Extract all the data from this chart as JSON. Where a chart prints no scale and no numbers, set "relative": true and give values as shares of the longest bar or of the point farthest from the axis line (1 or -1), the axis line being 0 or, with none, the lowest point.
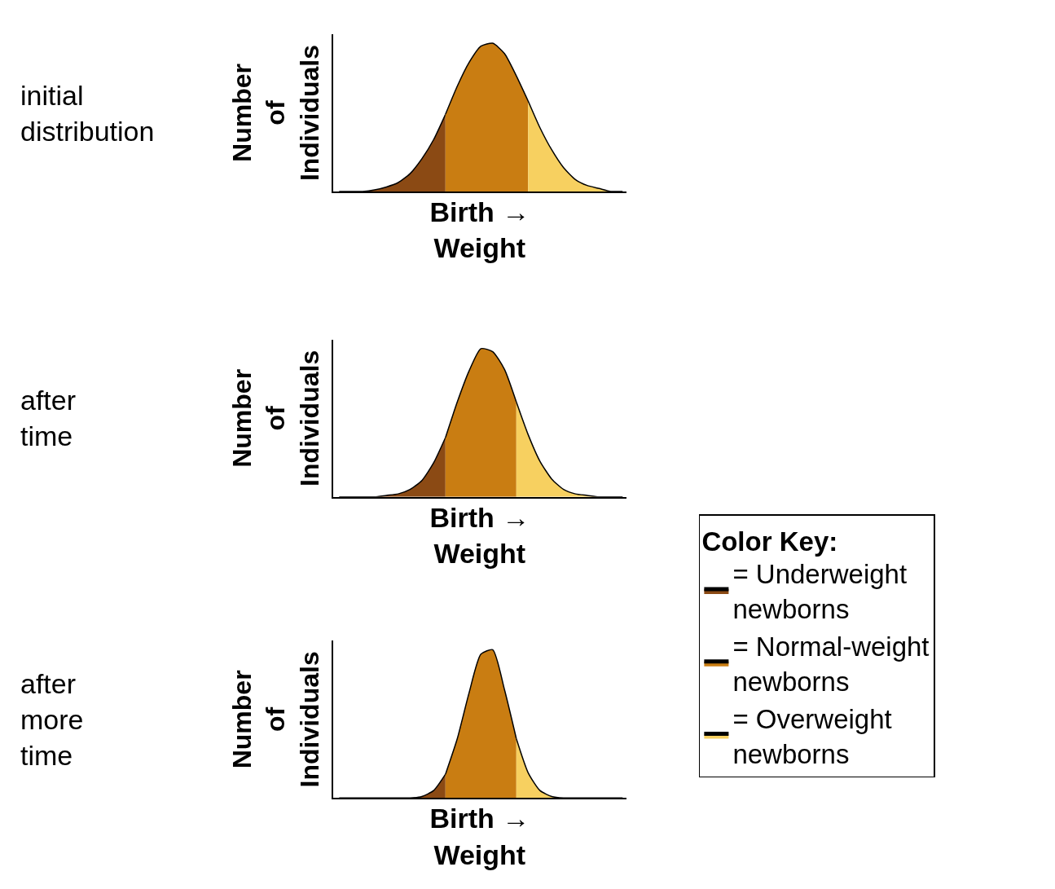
{
  "chart_data": [
    {
      "type": "area",
      "relative": true,
      "xlabel": "Birth →\nWeight",
      "ylabel": "Number\nof\nIndividuals",
      "annotations": [
        "initial\ndistribution"
      ],
      "categories": [
        null,
        null,
        null,
        null,
        null,
        null,
        null,
        null,
        null,
        null,
        null,
        null,
        null,
        null,
        null,
        null,
        null,
        null,
        null,
        null,
        null,
        null,
        null,
        null,
        null
      ],
      "series": [
        {
          "color": "#8b4a14",
          "values": [
            0,
            0,
            0,
            0.01,
            0.03,
            0.06,
            0.12,
            0.22,
            0.35,
            0.52,
            null,
            null,
            null,
            null,
            null,
            null,
            null,
            null,
            null,
            null,
            null,
            null,
            null,
            null,
            null
          ]
        },
        {
          "color": "#c97d12",
          "values": [
            null,
            null,
            null,
            null,
            null,
            null,
            null,
            null,
            null,
            0.52,
            0.71,
            0.87,
            0.98,
            1,
            0.93,
            0.78,
            0.61,
            null,
            null,
            null,
            null,
            null,
            null,
            null,
            null
          ]
        },
        {
          "color": "#f7d060",
          "values": [
            null,
            null,
            null,
            null,
            null,
            null,
            null,
            null,
            null,
            null,
            null,
            null,
            null,
            null,
            null,
            null,
            0.61,
            0.43,
            0.28,
            0.16,
            0.08,
            0.04,
            0.02,
            0,
            0
          ]
        }
      ],
      "legend": false
    },
    {
      "type": "area",
      "relative": true,
      "xlabel": "Birth →\nWeight",
      "ylabel": "Number\nof\nIndividuals",
      "annotations": [
        "after\ntime"
      ],
      "categories": [
        null,
        null,
        null,
        null,
        null,
        null,
        null,
        null,
        null,
        null,
        null,
        null,
        null,
        null,
        null,
        null,
        null,
        null,
        null,
        null,
        null,
        null,
        null,
        null,
        null
      ],
      "series": [
        {
          "color": "#8b4a14",
          "values": [
            0,
            0,
            0,
            0,
            0.01,
            0.02,
            0.05,
            0.11,
            0.23,
            0.4,
            null,
            null,
            null,
            null,
            null,
            null,
            null,
            null,
            null,
            null,
            null,
            null,
            null,
            null,
            null
          ]
        },
        {
          "color": "#c97d12",
          "values": [
            null,
            null,
            null,
            null,
            null,
            null,
            null,
            null,
            null,
            0.4,
            0.64,
            0.85,
            1,
            0.98,
            0.86,
            0.64,
            null,
            null,
            null,
            null,
            null,
            null,
            null,
            null,
            null
          ]
        },
        {
          "color": "#f7d060",
          "values": [
            null,
            null,
            null,
            null,
            null,
            null,
            null,
            null,
            null,
            null,
            null,
            null,
            null,
            null,
            null,
            0.64,
            0.42,
            0.24,
            0.12,
            0.05,
            0.02,
            0.01,
            0,
            0,
            0
          ]
        }
      ],
      "legend": false
    },
    {
      "type": "area",
      "relative": true,
      "xlabel": "Birth →\nWeight",
      "ylabel": "Number\nof\nIndividuals",
      "annotations": [
        "after\nmore\ntime"
      ],
      "legend_title": "Color Key:",
      "categories": [
        null,
        null,
        null,
        null,
        null,
        null,
        null,
        null,
        null,
        null,
        null,
        null,
        null,
        null,
        null,
        null,
        null,
        null,
        null,
        null,
        null,
        null,
        null,
        null,
        null
      ],
      "series": [
        {
          "name": "= Underweight\nnewborns",
          "color": "#8b4a14",
          "values": [
            0,
            0,
            0,
            0,
            0,
            0,
            0,
            0.01,
            0.05,
            0.16,
            null,
            null,
            null,
            null,
            null,
            null,
            null,
            null,
            null,
            null,
            null,
            null,
            null,
            null,
            null
          ]
        },
        {
          "name": "= Normal-weight\nnewborns",
          "color": "#c97d12",
          "values": [
            null,
            null,
            null,
            null,
            null,
            null,
            null,
            null,
            null,
            0.16,
            0.4,
            0.71,
            0.97,
            1,
            0.73,
            0.4,
            null,
            null,
            null,
            null,
            null,
            null,
            null,
            null,
            null
          ]
        },
        {
          "name": "= Overweight\nnewborns",
          "color": "#f7d060",
          "values": [
            null,
            null,
            null,
            null,
            null,
            null,
            null,
            null,
            null,
            null,
            null,
            null,
            null,
            null,
            null,
            0.4,
            0.17,
            0.05,
            0.01,
            0,
            0,
            0,
            0,
            0,
            0
          ]
        }
      ],
      "legend": "right"
    }
  ]
}
